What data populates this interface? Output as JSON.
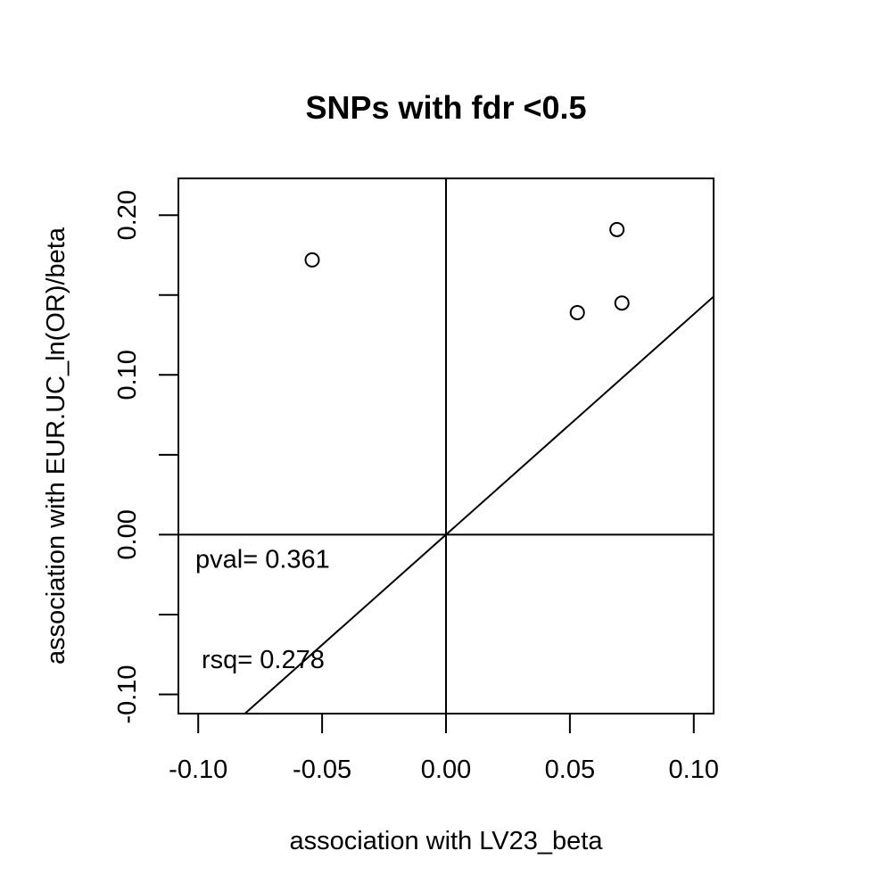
{
  "chart_data": {
    "type": "scatter",
    "title": "SNPs with fdr <0.5",
    "xlabel": "association with LV23_beta",
    "ylabel": "association with EUR.UC_ln(OR)/beta",
    "xlim": [
      -0.108,
      0.108
    ],
    "ylim": [
      -0.112,
      0.223
    ],
    "x_ticks": [
      -0.1,
      -0.05,
      0.0,
      0.05,
      0.1
    ],
    "x_tick_labels": [
      "-0.10",
      "-0.05",
      "0.00",
      "0.05",
      "0.10"
    ],
    "y_ticks": [
      -0.1,
      -0.05,
      0.0,
      0.05,
      0.1,
      0.15,
      0.2
    ],
    "y_tick_labels": [
      "-0.10",
      "",
      "0.00",
      "",
      "0.10",
      "",
      "0.20"
    ],
    "points": [
      {
        "x": -0.054,
        "y": 0.172
      },
      {
        "x": 0.069,
        "y": 0.191
      },
      {
        "x": 0.053,
        "y": 0.139
      },
      {
        "x": 0.071,
        "y": 0.145
      }
    ],
    "reference_lines": {
      "vertical_x": 0,
      "horizontal_y": 0,
      "diagonal_slope": 1.38,
      "diagonal_intercept": 0
    },
    "annotations": [
      {
        "text": "pval= 0.361",
        "x": -0.1,
        "y": -0.015
      },
      {
        "text": "rsq= 0.278",
        "x": -0.1,
        "y": -0.078
      }
    ],
    "grid": false,
    "legend": "none"
  }
}
